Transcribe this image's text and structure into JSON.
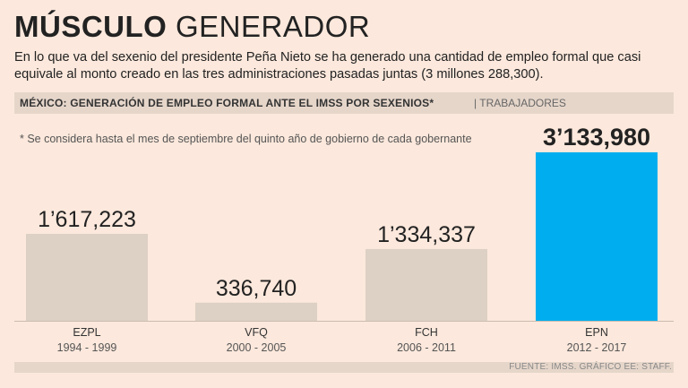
{
  "header": {
    "title_bold": "MÚSCULO",
    "title_light": "GENERADOR",
    "subtitle": "En lo que va del sexenio del presidente Peña Nieto se ha generado una cantidad de empleo formal que casi equivale al monto creado en las tres administraciones pasadas juntas (3 millones 288,300)."
  },
  "band": {
    "title": "MÉXICO: GENERACIÓN DE EMPLEO FORMAL ANTE EL IMSS POR SEXENIOS*",
    "unit": "| TRABAJADORES"
  },
  "note": "* Se considera hasta el mes de septiembre del quinto año de gobierno de cada gobernante",
  "source": "FUENTE: IMSS. GRÁFICO EE: STAFF.",
  "colors": {
    "bar": "#ddd0c4",
    "highlight": "#00aeef",
    "background": "#fce8dc"
  },
  "chart_data": {
    "type": "bar",
    "title": "MÉXICO: GENERACIÓN DE EMPLEO FORMAL ANTE EL IMSS POR SEXENIOS*",
    "ylabel": "TRABAJADORES",
    "categories": [
      "EZPL",
      "VFQ",
      "FCH",
      "EPN"
    ],
    "periods": [
      "1994 - 1999",
      "2000 - 2005",
      "2006 - 2011",
      "2012 - 2017"
    ],
    "values": [
      1617223,
      336740,
      1334337,
      3133980
    ],
    "value_labels": [
      "1’617,223",
      "336,740",
      "1’334,337",
      "3’133,980"
    ],
    "highlight_index": 3,
    "ylim": [
      0,
      3133980
    ]
  }
}
